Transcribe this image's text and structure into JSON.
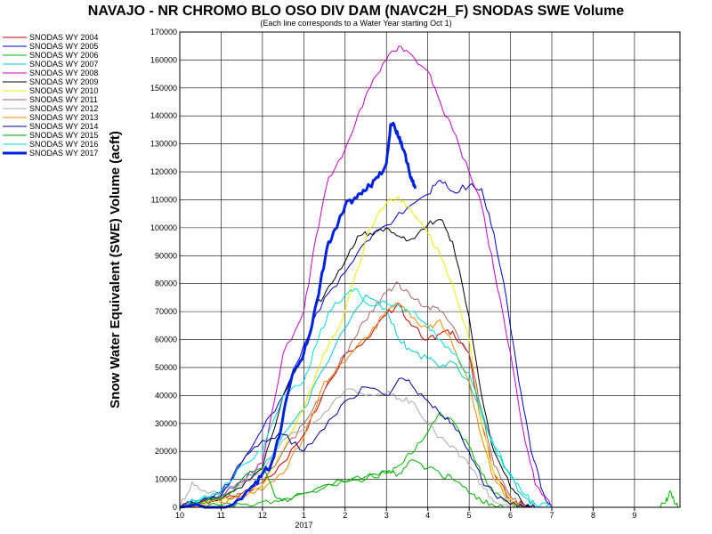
{
  "chart_data": {
    "type": "line",
    "title": "NAVAJO - NR CHROMO BLO OSO DIV DAM (NAVC2H_F) SNODAS SWE Volume",
    "subtitle": "(Each line corresponds to a Water Year starting Oct 1)",
    "ylabel": "Snow Water Equivalent (SWE) Volume (acft)",
    "xlabel": "",
    "x_unit": "month since Oct 1",
    "ylim": [
      0,
      170000
    ],
    "xlim": [
      10,
      22.1
    ],
    "y_ticks": [
      0,
      10000,
      20000,
      30000,
      40000,
      50000,
      60000,
      70000,
      80000,
      90000,
      100000,
      110000,
      120000,
      130000,
      140000,
      150000,
      160000,
      170000
    ],
    "x_ticks": [
      {
        "x": 10,
        "label": "10"
      },
      {
        "x": 11,
        "label": "11"
      },
      {
        "x": 12,
        "label": "12"
      },
      {
        "x": 13,
        "label": "1"
      },
      {
        "x": 14,
        "label": "2"
      },
      {
        "x": 15,
        "label": "3"
      },
      {
        "x": 16,
        "label": "4"
      },
      {
        "x": 17,
        "label": "5"
      },
      {
        "x": 18,
        "label": "6"
      },
      {
        "x": 19,
        "label": "7"
      },
      {
        "x": 20,
        "label": "8"
      },
      {
        "x": 21,
        "label": "9"
      }
    ],
    "year_label": {
      "x": 13,
      "label": "2017"
    },
    "grid": true,
    "legend_position": "left",
    "series": [
      {
        "name": "SNODAS WY 2004",
        "color": "#cc0000",
        "width": 1,
        "x": [
          10.0,
          10.5,
          11.0,
          11.5,
          12.0,
          12.5,
          13.0,
          13.5,
          14.0,
          14.5,
          15.0,
          15.3,
          15.6,
          16.0,
          16.3,
          16.6,
          17.0,
          17.3,
          17.6,
          18.0,
          18.3,
          18.6
        ],
        "y": [
          0,
          1500,
          3000,
          5000,
          8000,
          16000,
          26000,
          42000,
          55000,
          60000,
          69000,
          73000,
          65000,
          60000,
          62000,
          63000,
          55000,
          30000,
          12000,
          3000,
          500,
          0
        ]
      },
      {
        "name": "SNODAS WY 2005",
        "color": "#0000cc",
        "width": 1,
        "x": [
          10.0,
          10.5,
          11.0,
          11.5,
          12.0,
          12.5,
          13.0,
          13.5,
          14.0,
          14.5,
          15.0,
          15.5,
          16.0,
          16.3,
          16.6,
          17.0,
          17.3,
          17.6,
          17.9,
          18.2,
          18.5,
          18.8,
          19.0
        ],
        "y": [
          0,
          2000,
          5000,
          16000,
          28000,
          40000,
          58000,
          75000,
          84000,
          95000,
          101000,
          107000,
          112000,
          117000,
          113000,
          115000,
          114000,
          98000,
          75000,
          45000,
          20000,
          5000,
          0
        ]
      },
      {
        "name": "SNODAS WY 2006",
        "color": "#00bb00",
        "width": 1,
        "x": [
          10.0,
          11.0,
          11.5,
          12.0,
          12.5,
          13.0,
          13.5,
          14.0,
          14.5,
          15.0,
          15.3,
          15.6,
          16.0,
          16.3,
          16.6,
          17.0,
          17.3,
          17.6,
          18.0,
          18.3
        ],
        "y": [
          0,
          500,
          1000,
          2000,
          3000,
          5000,
          7000,
          9000,
          11000,
          12000,
          15000,
          19000,
          27000,
          34000,
          31000,
          22000,
          12000,
          5000,
          1000,
          0
        ]
      },
      {
        "name": "SNODAS WY 2007",
        "color": "#00cccc",
        "width": 1,
        "x": [
          10.0,
          10.5,
          11.0,
          11.5,
          12.0,
          12.5,
          13.0,
          13.5,
          14.0,
          14.5,
          15.0,
          15.3,
          15.6,
          16.0,
          16.3,
          16.6,
          17.0,
          17.3,
          17.6,
          18.0,
          18.3,
          18.6,
          19.0
        ],
        "y": [
          0,
          2500,
          5000,
          10000,
          14000,
          26000,
          35000,
          50000,
          64000,
          76000,
          71000,
          60000,
          56000,
          53000,
          50000,
          52000,
          45000,
          33000,
          22000,
          11000,
          4000,
          1000,
          0
        ]
      },
      {
        "name": "SNODAS WY 2008",
        "color": "#cc00cc",
        "width": 1,
        "x": [
          10.0,
          10.5,
          11.0,
          11.5,
          12.0,
          12.5,
          13.0,
          13.3,
          13.6,
          14.0,
          14.3,
          14.6,
          15.0,
          15.3,
          15.6,
          16.0,
          16.3,
          16.6,
          17.0,
          17.3,
          17.6,
          18.0,
          18.3,
          18.6,
          19.0
        ],
        "y": [
          0,
          2000,
          4000,
          9000,
          16000,
          55000,
          70000,
          97000,
          118000,
          128000,
          140000,
          150000,
          160000,
          165000,
          162000,
          156000,
          145000,
          135000,
          120000,
          108000,
          85000,
          55000,
          28000,
          8000,
          0
        ]
      },
      {
        "name": "SNODAS WY 2009",
        "color": "#000000",
        "width": 1,
        "x": [
          10.0,
          10.5,
          11.0,
          11.5,
          12.0,
          12.5,
          13.0,
          13.3,
          13.6,
          14.0,
          14.3,
          14.6,
          15.0,
          15.3,
          15.6,
          16.0,
          16.3,
          16.6,
          17.0,
          17.3,
          17.6,
          18.0,
          18.3,
          18.6
        ],
        "y": [
          0,
          2000,
          3000,
          7000,
          14000,
          40000,
          55000,
          72000,
          79000,
          88000,
          97000,
          98000,
          100000,
          97000,
          96000,
          101000,
          103000,
          95000,
          68000,
          40000,
          20000,
          7000,
          1500,
          0
        ]
      },
      {
        "name": "SNODAS WY 2010",
        "color": "#eeee00",
        "width": 1,
        "x": [
          10.0,
          10.5,
          11.0,
          11.5,
          12.0,
          12.5,
          13.0,
          13.3,
          13.6,
          14.0,
          14.3,
          14.6,
          15.0,
          15.3,
          15.6,
          16.0,
          16.3,
          16.6,
          17.0,
          17.3,
          17.6,
          18.0,
          18.3
        ],
        "y": [
          0,
          1000,
          2000,
          5000,
          8000,
          20000,
          35000,
          48000,
          58000,
          70000,
          85000,
          100000,
          109000,
          111000,
          106000,
          98000,
          90000,
          80000,
          60000,
          30000,
          12000,
          3000,
          0
        ]
      },
      {
        "name": "SNODAS WY 2011",
        "color": "#aa6666",
        "width": 1,
        "x": [
          10.0,
          10.5,
          11.0,
          11.5,
          12.0,
          12.5,
          13.0,
          13.5,
          14.0,
          14.3,
          14.6,
          15.0,
          15.3,
          15.6,
          16.0,
          16.3,
          16.6,
          17.0,
          17.3,
          17.6,
          18.0,
          18.3
        ],
        "y": [
          0,
          1500,
          3000,
          5000,
          9000,
          20000,
          30000,
          42000,
          55000,
          62000,
          70000,
          77000,
          80000,
          75000,
          72000,
          70000,
          65000,
          55000,
          35000,
          15000,
          4000,
          0
        ]
      },
      {
        "name": "SNODAS WY 2012",
        "color": "#aaaaaa",
        "width": 1,
        "x": [
          10.0,
          10.3,
          10.6,
          11.0,
          11.5,
          12.0,
          12.5,
          13.0,
          13.5,
          14.0,
          14.5,
          15.0,
          15.3,
          15.6,
          16.0,
          16.3,
          16.6,
          17.0,
          17.3,
          17.6,
          18.0
        ],
        "y": [
          0,
          9000,
          6000,
          4000,
          8000,
          12000,
          24000,
          28000,
          34000,
          42000,
          40000,
          41000,
          39000,
          38000,
          30000,
          25000,
          22000,
          15000,
          8000,
          2000,
          0
        ]
      },
      {
        "name": "SNODAS WY 2013",
        "color": "#ee8800",
        "width": 1,
        "x": [
          10.0,
          10.5,
          11.0,
          11.5,
          12.0,
          12.5,
          13.0,
          13.5,
          14.0,
          14.3,
          14.6,
          15.0,
          15.3,
          15.6,
          16.0,
          16.3,
          16.6,
          17.0,
          17.3,
          17.6,
          18.0,
          18.3
        ],
        "y": [
          0,
          1000,
          2000,
          4000,
          6000,
          12000,
          25000,
          45000,
          52000,
          58000,
          62000,
          70000,
          73000,
          68000,
          64000,
          67000,
          58000,
          45000,
          25000,
          10000,
          2000,
          0
        ]
      },
      {
        "name": "SNODAS WY 2014",
        "color": "#000099",
        "width": 1,
        "x": [
          10.0,
          10.5,
          11.0,
          11.5,
          12.0,
          12.5,
          13.0,
          13.5,
          14.0,
          14.5,
          15.0,
          15.3,
          15.6,
          16.0,
          16.3,
          16.6,
          17.0,
          17.3,
          17.6,
          18.0,
          18.3,
          18.6
        ],
        "y": [
          0,
          2000,
          4000,
          16000,
          24000,
          26000,
          20000,
          28000,
          38000,
          43000,
          40000,
          46000,
          44000,
          38000,
          33000,
          30000,
          20000,
          10000,
          5000,
          1000,
          200,
          0
        ]
      },
      {
        "name": "SNODAS WY 2015",
        "color": "#00aa00",
        "width": 1,
        "x": [
          10.0,
          10.5,
          11.0,
          11.5,
          12.0,
          12.3,
          12.6,
          13.0,
          13.5,
          14.0,
          14.5,
          15.0,
          15.3,
          15.6,
          16.0,
          16.3,
          16.6,
          17.0,
          17.3,
          17.6,
          18.0,
          18.2
        ],
        "y": [
          0,
          1500,
          3000,
          10000,
          14000,
          4000,
          2000,
          5000,
          8000,
          9000,
          10000,
          13000,
          12000,
          17000,
          14000,
          12000,
          10000,
          5000,
          2000,
          500,
          0,
          0
        ]
      },
      {
        "name": "SNODAS WY 2016",
        "color": "#00dddd",
        "width": 1,
        "x": [
          10.0,
          10.5,
          11.0,
          11.5,
          12.0,
          12.5,
          13.0,
          13.3,
          13.6,
          14.0,
          14.3,
          14.6,
          15.0,
          15.3,
          15.6,
          16.0,
          16.3,
          16.6,
          17.0,
          17.3,
          17.6,
          18.0,
          18.3,
          18.6,
          19.0
        ],
        "y": [
          0,
          3000,
          6000,
          15000,
          20000,
          40000,
          45000,
          58000,
          70000,
          76000,
          78000,
          72000,
          73000,
          72000,
          70000,
          65000,
          60000,
          55000,
          48000,
          35000,
          22000,
          12000,
          5000,
          1000,
          0
        ]
      },
      {
        "name": "SNODAS WY 2017",
        "color": "#0022dd",
        "width": 3,
        "x": [
          10.0,
          11.0,
          11.5,
          11.8,
          12.0,
          12.2,
          12.4,
          12.6,
          12.8,
          13.0,
          13.2,
          13.4,
          13.6,
          13.8,
          14.0,
          14.2,
          14.4,
          14.6,
          14.8,
          15.0,
          15.1,
          15.2,
          15.3,
          15.4,
          15.5,
          15.6,
          15.7
        ],
        "y": [
          0,
          0,
          3000,
          8000,
          12000,
          15000,
          25000,
          40000,
          50000,
          55000,
          65000,
          80000,
          95000,
          100000,
          108000,
          110000,
          112000,
          115000,
          118000,
          123000,
          137000,
          136000,
          132000,
          128000,
          123000,
          118000,
          114000
        ]
      },
      {
        "name": "",
        "color": "#00bb00",
        "width": 1,
        "x": [
          21.6,
          21.75,
          21.85,
          21.95,
          22.05
        ],
        "y": [
          0,
          1500,
          6000,
          3000,
          0
        ]
      }
    ]
  }
}
